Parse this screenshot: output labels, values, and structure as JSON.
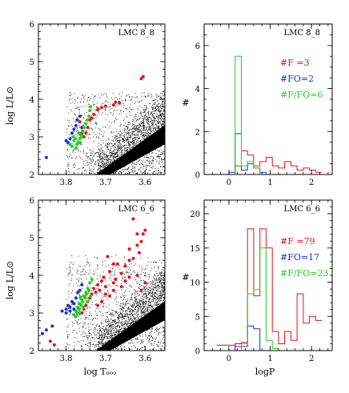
{
  "colors": {
    "F": "#e8101a",
    "FO": "#1a2fd6",
    "F_FO": "#1fd11f",
    "background": "#000000"
  },
  "chart_data": [
    {
      "type": "scatter",
      "title": "LMC 8_8",
      "xlabel": "",
      "ylabel": "log L/L⊙",
      "xlim": [
        3.87,
        3.55
      ],
      "ylim": [
        2,
        6
      ],
      "xticks": [
        "3.8",
        "3.7",
        "3.6"
      ],
      "yticks": [
        "2",
        "3",
        "4",
        "5",
        "6"
      ],
      "series": [
        {
          "name": "F",
          "color": "#e8101a",
          "points": [
            [
              3.605,
              4.6
            ],
            [
              3.61,
              4.55
            ],
            [
              3.665,
              3.9
            ],
            [
              3.675,
              3.92
            ],
            [
              3.68,
              3.85
            ],
            [
              3.7,
              3.82
            ],
            [
              3.71,
              3.78
            ],
            [
              3.72,
              3.72
            ],
            [
              3.73,
              3.6
            ],
            [
              3.735,
              3.5
            ],
            [
              3.74,
              3.45
            ],
            [
              3.745,
              3.25
            ],
            [
              3.75,
              3.1
            ],
            [
              3.755,
              3.0
            ],
            [
              3.76,
              3.1
            ],
            [
              3.765,
              3.4
            ]
          ]
        },
        {
          "name": "FO",
          "color": "#1a2fd6",
          "points": [
            [
              3.85,
              2.45
            ],
            [
              3.795,
              2.85
            ],
            [
              3.79,
              2.95
            ],
            [
              3.785,
              3.1
            ],
            [
              3.78,
              3.2
            ],
            [
              3.775,
              3.3
            ],
            [
              3.772,
              3.45
            ],
            [
              3.765,
              3.55
            ],
            [
              3.76,
              3.25
            ],
            [
              3.8,
              2.9
            ]
          ]
        },
        {
          "name": "F/FO",
          "color": "#1fd11f",
          "points": [
            [
              3.79,
              2.8
            ],
            [
              3.785,
              2.75
            ],
            [
              3.78,
              2.9
            ],
            [
              3.775,
              2.7
            ],
            [
              3.77,
              2.85
            ],
            [
              3.765,
              2.95
            ],
            [
              3.762,
              3.05
            ],
            [
              3.758,
              3.15
            ],
            [
              3.754,
              3.25
            ],
            [
              3.75,
              3.35
            ],
            [
              3.746,
              3.45
            ],
            [
              3.742,
              3.55
            ],
            [
              3.74,
              3.7
            ],
            [
              3.738,
              3.8
            ],
            [
              3.782,
              3.0
            ],
            [
              3.776,
              2.95
            ],
            [
              3.772,
              2.8
            ],
            [
              3.768,
              3.1
            ],
            [
              3.764,
              2.85
            ],
            [
              3.76,
              3.0
            ]
          ]
        }
      ]
    },
    {
      "type": "histogram",
      "title": "LMC 8_8",
      "xlabel": "",
      "ylabel": "#",
      "xlim": [
        -0.6,
        2.5
      ],
      "ylim": [
        0,
        7
      ],
      "xticks": [
        "0",
        "1",
        "2"
      ],
      "yticks": [
        "0",
        "2",
        "4",
        "6"
      ],
      "bins": [
        -0.3,
        -0.15,
        0.0,
        0.15,
        0.3,
        0.45,
        0.6,
        0.75,
        0.9,
        1.05,
        1.2,
        1.35,
        1.5,
        1.65,
        1.8,
        1.95,
        2.1,
        2.25
      ],
      "legend": [
        "#F =3",
        "#FO=2",
        "#F/FO=6"
      ],
      "series": [
        {
          "name": "F",
          "color": "#e8101a",
          "values": [
            0,
            0,
            0,
            0.4,
            1.1,
            0.9,
            0.4,
            0.6,
            0.8,
            0.4,
            0.3,
            0.6,
            0.4,
            0.2,
            0.3,
            0.2,
            0.1
          ]
        },
        {
          "name": "FO",
          "color": "#1a2fd6",
          "values": [
            0,
            0,
            0.1,
            1.9,
            0.2,
            0.5,
            0.3,
            0.1,
            0,
            0,
            0,
            0,
            0,
            0,
            0,
            0,
            0
          ]
        },
        {
          "name": "F/FO",
          "color": "#1fd11f",
          "values": [
            0,
            0,
            0,
            5.5,
            0.4,
            0.6,
            0.3,
            0,
            0,
            0,
            0,
            0,
            0,
            0,
            0,
            0,
            0
          ]
        }
      ]
    },
    {
      "type": "scatter",
      "title": "LMC 6_6",
      "xlabel": "log Tₑₒₒ",
      "ylabel": "log L/L⊙",
      "xlim": [
        3.87,
        3.55
      ],
      "ylim": [
        2,
        6
      ],
      "xticks": [
        "3.8",
        "3.7",
        "3.6"
      ],
      "yticks": [
        "2",
        "3",
        "4",
        "5",
        "6"
      ],
      "series": [
        {
          "name": "F",
          "color": "#e8101a",
          "points": [
            [
              3.6,
              5.2
            ],
            [
              3.605,
              5.1
            ],
            [
              3.61,
              4.9
            ],
            [
              3.62,
              4.8
            ],
            [
              3.615,
              4.6
            ],
            [
              3.63,
              5.5
            ],
            [
              3.64,
              4.4
            ],
            [
              3.65,
              4.25
            ],
            [
              3.66,
              4.05
            ],
            [
              3.67,
              4.3
            ],
            [
              3.675,
              3.9
            ],
            [
              3.68,
              3.8
            ],
            [
              3.69,
              4.1
            ],
            [
              3.7,
              3.7
            ],
            [
              3.705,
              3.95
            ],
            [
              3.71,
              3.85
            ],
            [
              3.715,
              3.6
            ],
            [
              3.72,
              3.75
            ],
            [
              3.725,
              3.55
            ],
            [
              3.73,
              3.65
            ],
            [
              3.735,
              3.5
            ],
            [
              3.74,
              3.4
            ],
            [
              3.745,
              3.3
            ],
            [
              3.75,
              3.2
            ],
            [
              3.755,
              3.1
            ],
            [
              3.76,
              3.0
            ],
            [
              3.7,
              3.5
            ],
            [
              3.71,
              3.3
            ],
            [
              3.72,
              3.2
            ],
            [
              3.68,
              3.6
            ],
            [
              3.69,
              3.45
            ],
            [
              3.66,
              3.7
            ],
            [
              3.65,
              3.85
            ],
            [
              3.64,
              3.95
            ],
            [
              3.62,
              4.0
            ],
            [
              3.61,
              3.6
            ],
            [
              3.6,
              3.8
            ],
            [
              3.68,
              4.3
            ],
            [
              3.695,
              4.5
            ],
            [
              3.64,
              4.7
            ],
            [
              3.63,
              4.45
            ],
            [
              3.62,
              5.1
            ],
            [
              3.84,
              2.25
            ],
            [
              3.83,
              2.15
            ]
          ]
        },
        {
          "name": "FO",
          "color": "#1a2fd6",
          "points": [
            [
              3.86,
              2.45
            ],
            [
              3.85,
              2.55
            ],
            [
              3.835,
              2.65
            ],
            [
              3.81,
              3.05
            ],
            [
              3.8,
              3.1
            ],
            [
              3.795,
              3.2
            ],
            [
              3.79,
              3.05
            ],
            [
              3.785,
              3.3
            ],
            [
              3.78,
              3.1
            ],
            [
              3.775,
              3.4
            ],
            [
              3.77,
              3.55
            ],
            [
              3.765,
              3.6
            ],
            [
              3.76,
              3.75
            ],
            [
              3.8,
              3.0
            ],
            [
              3.79,
              3.15
            ],
            [
              3.78,
              3.25
            ]
          ]
        },
        {
          "name": "F/FO",
          "color": "#1fd11f",
          "points": [
            [
              3.78,
              2.95
            ],
            [
              3.775,
              3.05
            ],
            [
              3.77,
              3.15
            ],
            [
              3.765,
              3.25
            ],
            [
              3.76,
              3.35
            ],
            [
              3.755,
              3.45
            ],
            [
              3.75,
              3.55
            ],
            [
              3.745,
              3.65
            ],
            [
              3.74,
              3.8
            ],
            [
              3.735,
              3.9
            ],
            [
              3.772,
              3.0
            ],
            [
              3.768,
              3.1
            ],
            [
              3.762,
              3.2
            ],
            [
              3.758,
              3.3
            ],
            [
              3.752,
              3.4
            ],
            [
              3.748,
              3.5
            ],
            [
              3.742,
              3.6
            ],
            [
              3.776,
              2.9
            ],
            [
              3.766,
              3.0
            ],
            [
              3.756,
              3.15
            ],
            [
              3.746,
              3.3
            ],
            [
              3.738,
              3.45
            ],
            [
              3.764,
              3.4
            ]
          ]
        }
      ]
    },
    {
      "type": "histogram",
      "title": "LMC 6_6",
      "xlabel": "logP",
      "ylabel": "#",
      "xlim": [
        -0.6,
        2.5
      ],
      "ylim": [
        0,
        22
      ],
      "xticks": [
        "0",
        "1",
        "2"
      ],
      "yticks": [
        "0",
        "5",
        "10",
        "15",
        "20"
      ],
      "bins": [
        -0.3,
        -0.15,
        0.0,
        0.15,
        0.3,
        0.45,
        0.6,
        0.75,
        0.9,
        1.05,
        1.2,
        1.35,
        1.5,
        1.65,
        1.8,
        1.95,
        2.1,
        2.25
      ],
      "legend": [
        "#F =79",
        "#FO=17",
        "#F/FO=23"
      ],
      "series": [
        {
          "name": "F",
          "color": "#e8101a",
          "values": [
            0.8,
            0.8,
            0.8,
            0.6,
            1.2,
            17.8,
            8.0,
            17.8,
            15.0,
            2.8,
            1.0,
            2.8,
            1.5,
            8.3,
            4.0,
            5.0,
            4.4
          ]
        },
        {
          "name": "FO",
          "color": "#1a2fd6",
          "values": [
            0,
            0,
            0,
            1.0,
            0.6,
            3.6,
            3.2,
            0,
            0,
            0,
            0,
            0,
            0,
            0,
            0,
            0,
            0
          ]
        },
        {
          "name": "F/FO",
          "color": "#1fd11f",
          "values": [
            0,
            0,
            0,
            0,
            1.0,
            8.3,
            8.9,
            15.0,
            1.5,
            0.3,
            0,
            0,
            0,
            0,
            0,
            0,
            0
          ]
        }
      ]
    }
  ]
}
